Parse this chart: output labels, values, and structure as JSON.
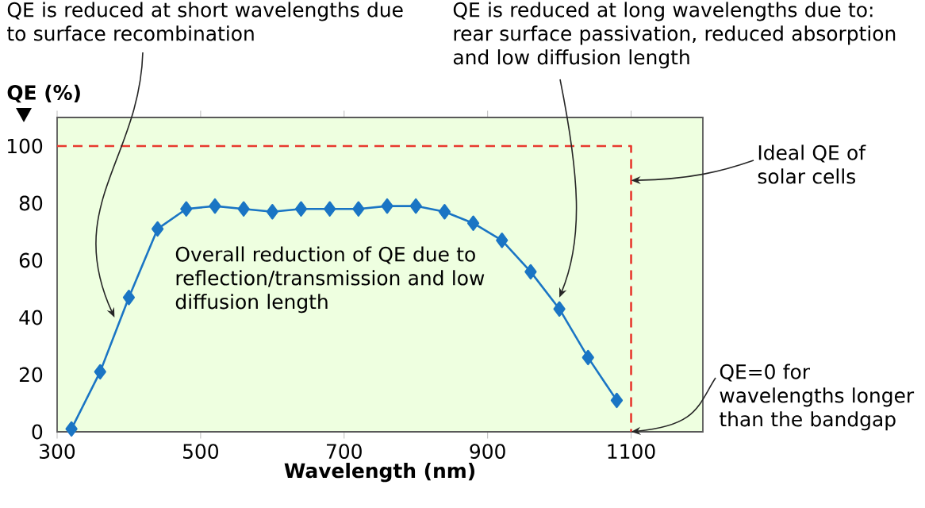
{
  "chart_data": {
    "type": "line",
    "xlabel": "Wavelength (nm)",
    "ylabel": "QE (%)",
    "xlim": [
      300,
      1200
    ],
    "ylim": [
      0,
      110
    ],
    "xticks": [
      300,
      500,
      700,
      900,
      1100
    ],
    "yticks": [
      0,
      20,
      40,
      60,
      80,
      100
    ],
    "grid": false,
    "series": [
      {
        "color": "#1a75c4",
        "marker": "diamond",
        "line_style": "solid",
        "x": [
          320,
          360,
          400,
          440,
          480,
          520,
          560,
          600,
          640,
          680,
          720,
          760,
          800,
          840,
          880,
          920,
          960,
          1000,
          1040,
          1080
        ],
        "values": [
          1,
          21,
          47,
          71,
          78,
          79,
          78,
          77,
          78,
          78,
          78,
          79,
          79,
          77,
          73,
          67,
          56,
          43,
          26,
          11
        ]
      },
      {
        "color": "#e8392e",
        "marker": "none",
        "line_style": "dashed",
        "x": [
          300,
          1100,
          1100
        ],
        "values": [
          100,
          100,
          0
        ]
      }
    ],
    "annotations": [
      {
        "text": "QE is reduced at short wavelengths due to surface recombination",
        "x": 380,
        "y": 40
      },
      {
        "text": "QE is reduced at long wavelengths due to: rear surface passivation, reduced absorption and low diffusion length",
        "x": 1000,
        "y": 47
      },
      "Overall reduction of QE due to reflection/transmission and low diffusion length",
      {
        "text": "Ideal QE of solar cells",
        "x": 1100,
        "y": 88
      },
      {
        "text": "QE=0 for wavelengths longer than the bandgap",
        "x": 1100,
        "y": 0
      }
    ]
  }
}
